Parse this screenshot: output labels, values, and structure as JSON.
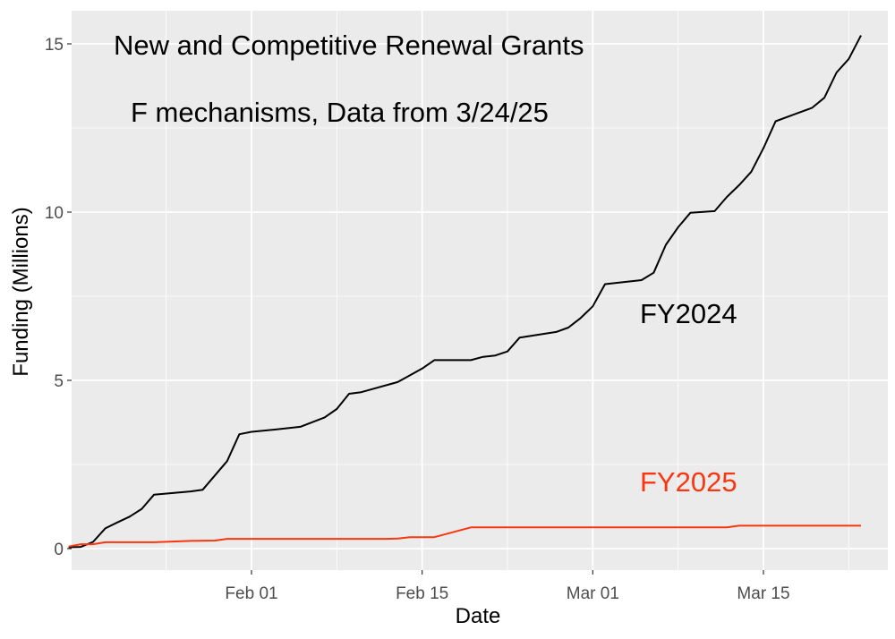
{
  "chart_data": {
    "type": "line",
    "title": "New and Competitive Renewal Grants",
    "subtitle": "F mechanisms, Data from 3/24/25",
    "xlabel": "Date",
    "ylabel": "Funding (Millions)",
    "x_ticks": [
      "Feb 01",
      "Feb 15",
      "Mar 01",
      "Mar 15"
    ],
    "y_ticks": [
      "0",
      "5",
      "10",
      "15"
    ],
    "ylim": [
      -0.55,
      16.1
    ],
    "grid": true,
    "colors": {
      "panel": "#ebebeb",
      "grid": "#ffffff",
      "fy2024": "#000000",
      "fy2025": "#f8360f"
    },
    "series": [
      {
        "name": "FY2024",
        "color": "#000000",
        "points": [
          [
            "2025-01-17",
            0.04
          ],
          [
            "2025-01-18",
            0.05
          ],
          [
            "2025-01-19",
            0.2
          ],
          [
            "2025-01-20",
            0.6
          ],
          [
            "2025-01-21",
            0.78
          ],
          [
            "2025-01-22",
            0.95
          ],
          [
            "2025-01-23",
            1.18
          ],
          [
            "2025-01-24",
            1.6
          ],
          [
            "2025-01-27",
            1.7
          ],
          [
            "2025-01-28",
            1.75
          ],
          [
            "2025-01-30",
            2.6
          ],
          [
            "2025-01-31",
            3.4
          ],
          [
            "2025-02-01",
            3.47
          ],
          [
            "2025-02-03",
            3.54
          ],
          [
            "2025-02-05",
            3.62
          ],
          [
            "2025-02-07",
            3.9
          ],
          [
            "2025-02-08",
            4.15
          ],
          [
            "2025-02-09",
            4.6
          ],
          [
            "2025-02-10",
            4.65
          ],
          [
            "2025-02-13",
            4.95
          ],
          [
            "2025-02-14",
            5.15
          ],
          [
            "2025-02-15",
            5.35
          ],
          [
            "2025-02-16",
            5.6
          ],
          [
            "2025-02-19",
            5.6
          ],
          [
            "2025-02-20",
            5.7
          ],
          [
            "2025-02-21",
            5.74
          ],
          [
            "2025-02-22",
            5.86
          ],
          [
            "2025-02-23",
            6.27
          ],
          [
            "2025-02-26",
            6.44
          ],
          [
            "2025-02-27",
            6.57
          ],
          [
            "2025-02-28",
            6.85
          ],
          [
            "2025-03-01",
            7.2
          ],
          [
            "2025-03-02",
            7.86
          ],
          [
            "2025-03-05",
            7.98
          ],
          [
            "2025-03-06",
            8.2
          ],
          [
            "2025-03-07",
            9.03
          ],
          [
            "2025-03-08",
            9.55
          ],
          [
            "2025-03-09",
            9.98
          ],
          [
            "2025-03-11",
            10.03
          ],
          [
            "2025-03-12",
            10.45
          ],
          [
            "2025-03-13",
            10.8
          ],
          [
            "2025-03-14",
            11.2
          ],
          [
            "2025-03-15",
            11.9
          ],
          [
            "2025-03-16",
            12.7
          ],
          [
            "2025-03-19",
            13.1
          ],
          [
            "2025-03-20",
            13.4
          ],
          [
            "2025-03-21",
            14.15
          ],
          [
            "2025-03-22",
            14.55
          ],
          [
            "2025-03-23",
            15.25
          ]
        ]
      },
      {
        "name": "FY2025",
        "color": "#f8360f",
        "points": [
          [
            "2025-01-17",
            0.06
          ],
          [
            "2025-01-18",
            0.13
          ],
          [
            "2025-01-19",
            0.13
          ],
          [
            "2025-01-20",
            0.19
          ],
          [
            "2025-01-23",
            0.19
          ],
          [
            "2025-01-24",
            0.19
          ],
          [
            "2025-01-27",
            0.23
          ],
          [
            "2025-01-29",
            0.24
          ],
          [
            "2025-01-30",
            0.29
          ],
          [
            "2025-02-12",
            0.29
          ],
          [
            "2025-02-13",
            0.3
          ],
          [
            "2025-02-14",
            0.34
          ],
          [
            "2025-02-16",
            0.34
          ],
          [
            "2025-02-19",
            0.63
          ],
          [
            "2025-03-12",
            0.63
          ],
          [
            "2025-03-13",
            0.68
          ],
          [
            "2025-03-23",
            0.68
          ]
        ]
      }
    ]
  }
}
